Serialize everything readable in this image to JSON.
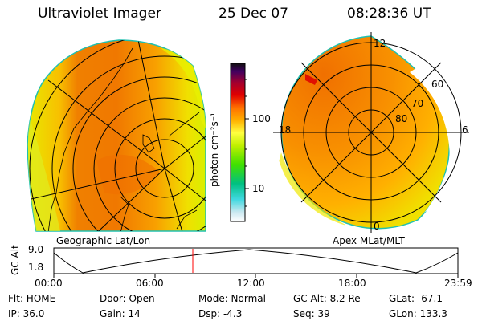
{
  "header": {
    "title": "Ultraviolet Imager",
    "date": "25 Dec 07",
    "time": "08:28:36 UT"
  },
  "left_panel": {
    "caption": "Geographic Lat/Lon"
  },
  "right_panel": {
    "caption": "Apex MLat/MLT",
    "mlt_labels": {
      "top": "12",
      "bottom": "0",
      "left": "18",
      "right": "6"
    },
    "lat_labels": [
      "60",
      "70",
      "80"
    ]
  },
  "colorbar": {
    "label": "photon cm⁻²s⁻¹",
    "tick_100": "100",
    "tick_10": "10"
  },
  "altitude_plot": {
    "ylabel": "GC Alt",
    "ymax": "9.0",
    "ymin": "1.8",
    "xticks": [
      "00:00",
      "06:00",
      "12:00",
      "18:00",
      "23:59"
    ],
    "marker_color": "#ff0000"
  },
  "info": {
    "flt": "Flt: HOME",
    "ip": "IP: 36.0",
    "door": "Door: Open",
    "gain": "Gain: 14",
    "mode": "Mode: Normal",
    "dsp": "Dsp:    -4.3",
    "gcalt": "GC Alt: 8.2 Re",
    "seq": "Seq: 39",
    "glat": "GLat:  -67.1",
    "glon": "GLon: 133.3"
  }
}
